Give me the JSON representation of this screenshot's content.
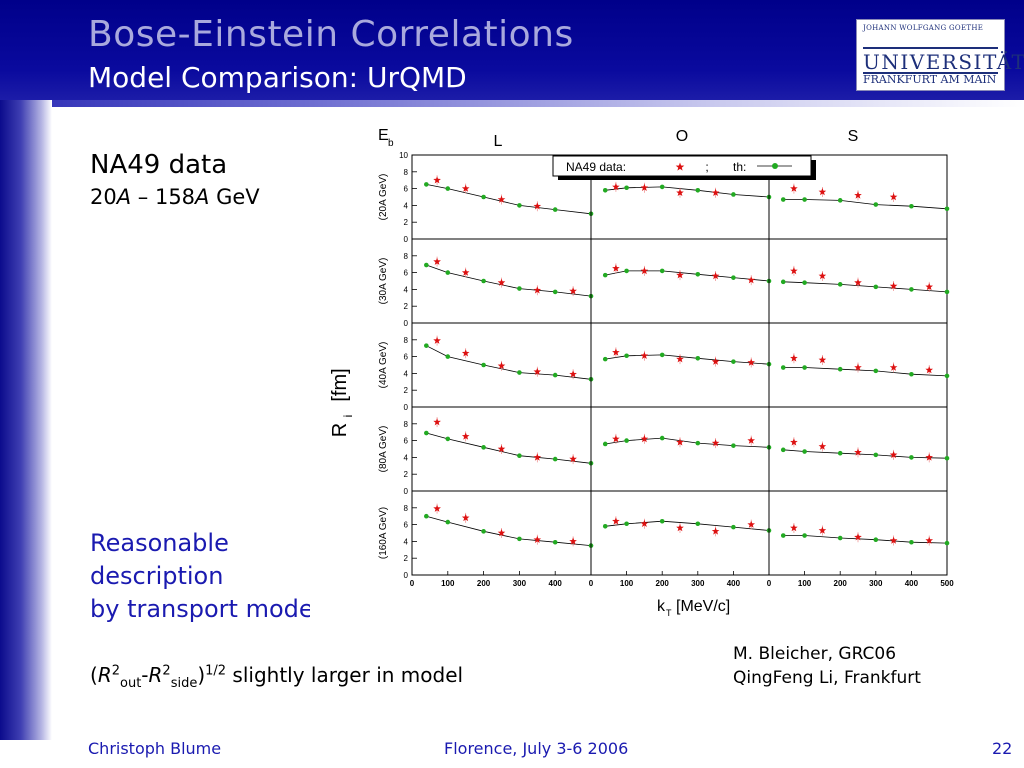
{
  "slide": {
    "title": "Bose-Einstein Correlations",
    "subtitle": "Model Comparison: UrQMD",
    "logo": {
      "line1": "JOHANN WOLFGANG GOETHE",
      "line2": "UNIVERSITÄT",
      "line3": "FRANKFURT AM MAIN"
    },
    "na49_label": "NA49 data",
    "energy": {
      "a": "20",
      "a_unit": "A",
      "sep": " – 158",
      "b_unit": "A",
      "tail": " GeV"
    },
    "reason_lines": [
      "Reasonable",
      "description",
      "by transport model"
    ],
    "formula": {
      "open": "(",
      "r1": "R",
      "sup1": "2",
      "sub1": "out",
      "minus": "-",
      "r2": "R",
      "sup2": "2",
      "sub2": "side",
      "close": ")",
      "pow": "1/2",
      "text": " slightly larger in model"
    },
    "credits": [
      "M. Bleicher, GRC06",
      "QingFeng Li, Frankfurt"
    ],
    "footer": {
      "left": "Christoph Blume",
      "middle": "Florence, July 3-6 2006",
      "page": "22"
    }
  },
  "colors": {
    "data": "#dd1111",
    "model": "#22aa22",
    "accent": "#1a1ab0"
  },
  "chart_data": {
    "type": "scatter",
    "columns": [
      "L",
      "O",
      "S"
    ],
    "column_label": "E_b",
    "rows": [
      "(20A GeV)",
      "(30A GeV)",
      "(40A GeV)",
      "(80A GeV)",
      "(160A GeV)"
    ],
    "xlabel": "k_T [MeV/c]",
    "ylabel": "R_i [fm]",
    "xlim": [
      0,
      500
    ],
    "ylim": [
      0,
      10
    ],
    "xticks": [
      "0",
      "100",
      "200",
      "300",
      "400"
    ],
    "xticks_last": [
      "0",
      "100",
      "200",
      "300",
      "400",
      "500"
    ],
    "yticks": [
      "0",
      "2",
      "4",
      "6",
      "8",
      "10"
    ],
    "legend": {
      "data_label": "NA49 data:",
      "sep": ";",
      "model_label": "th:",
      "position": "top-right"
    },
    "model_x": [
      40,
      100,
      200,
      300,
      400,
      500
    ],
    "data_x": [
      70,
      150,
      250,
      350,
      450
    ],
    "panels": [
      [
        {
          "model": [
            6.5,
            6.0,
            5.0,
            4.0,
            3.5,
            3.0
          ],
          "data": [
            7.0,
            6.0,
            4.7,
            3.9,
            null
          ]
        },
        {
          "model": [
            5.8,
            6.1,
            6.2,
            5.8,
            5.3,
            5.0
          ],
          "data": [
            6.2,
            6.1,
            5.5,
            5.5,
            null
          ]
        },
        {
          "model": [
            4.7,
            4.7,
            4.6,
            4.1,
            3.9,
            3.6
          ],
          "data": [
            6.0,
            5.6,
            5.2,
            5.0,
            null
          ]
        }
      ],
      [
        {
          "model": [
            6.9,
            6.0,
            5.0,
            4.1,
            3.7,
            3.2
          ],
          "data": [
            7.3,
            6.0,
            4.8,
            3.9,
            3.8
          ]
        },
        {
          "model": [
            5.7,
            6.2,
            6.2,
            5.8,
            5.4,
            5.0
          ],
          "data": [
            6.5,
            6.2,
            5.7,
            5.6,
            5.1
          ]
        },
        {
          "model": [
            4.9,
            4.8,
            4.6,
            4.3,
            4.0,
            3.7
          ],
          "data": [
            6.2,
            5.6,
            4.8,
            4.4,
            4.3
          ]
        }
      ],
      [
        {
          "model": [
            7.3,
            6.0,
            5.0,
            4.1,
            3.8,
            3.3
          ],
          "data": [
            7.9,
            6.4,
            4.9,
            4.2,
            3.9
          ]
        },
        {
          "model": [
            5.7,
            6.1,
            6.2,
            5.8,
            5.4,
            5.1
          ],
          "data": [
            6.5,
            6.1,
            5.7,
            5.4,
            5.3
          ]
        },
        {
          "model": [
            4.7,
            4.7,
            4.5,
            4.3,
            3.9,
            3.7
          ],
          "data": [
            5.8,
            5.6,
            4.7,
            4.7,
            4.4
          ]
        }
      ],
      [
        {
          "model": [
            6.9,
            6.2,
            5.2,
            4.2,
            3.8,
            3.3
          ],
          "data": [
            8.2,
            6.5,
            5.0,
            4.0,
            3.8
          ]
        },
        {
          "model": [
            5.6,
            6.0,
            6.3,
            5.7,
            5.4,
            5.2
          ],
          "data": [
            6.2,
            6.2,
            5.8,
            5.7,
            6.0
          ]
        },
        {
          "model": [
            4.9,
            4.7,
            4.5,
            4.3,
            4.0,
            3.9
          ],
          "data": [
            5.8,
            5.3,
            4.6,
            4.3,
            4.0
          ]
        }
      ],
      [
        {
          "model": [
            7.0,
            6.3,
            5.2,
            4.3,
            3.9,
            3.5
          ],
          "data": [
            7.9,
            6.8,
            5.0,
            4.2,
            4.0
          ]
        },
        {
          "model": [
            5.8,
            6.1,
            6.4,
            6.1,
            5.7,
            5.3
          ],
          "data": [
            6.4,
            6.1,
            5.6,
            5.2,
            6.0
          ]
        },
        {
          "model": [
            4.7,
            4.7,
            4.4,
            4.2,
            3.9,
            3.8
          ],
          "data": [
            5.6,
            5.3,
            4.5,
            4.1,
            4.1
          ]
        }
      ]
    ]
  }
}
